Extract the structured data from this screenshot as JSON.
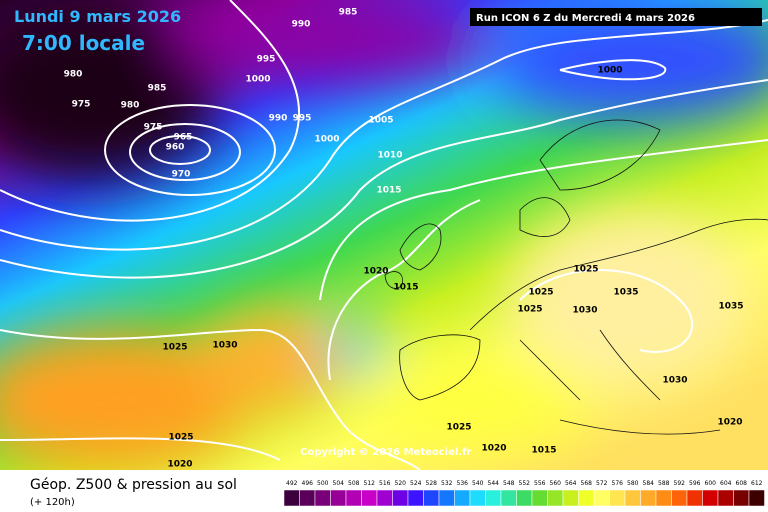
{
  "header": {
    "date": "Lundi 9 mars 2026",
    "time": "7:00 locale",
    "run": "Run ICON 6 Z du Mercredi 4 mars 2026"
  },
  "copyright": "Copyright © 2026 Meteociel.fr",
  "footer": {
    "title": "Géop. Z500 & pression au sol",
    "subtitle": "(+ 120h)"
  },
  "isobar_labels": [
    "985",
    "990",
    "995",
    "1000",
    "980",
    "975",
    "980",
    "985",
    "975",
    "965",
    "960",
    "970",
    "990",
    "995",
    "1000",
    "1005",
    "1010",
    "1015",
    "1000",
    "1020",
    "1015",
    "1025",
    "1025",
    "1035",
    "1025",
    "1030",
    "1035",
    "1025",
    "1030",
    "1030",
    "1025",
    "1025",
    "1020",
    "1015",
    "1020",
    "1020"
  ],
  "legend": {
    "values": [
      492,
      496,
      500,
      504,
      508,
      512,
      516,
      520,
      524,
      528,
      532,
      536,
      540,
      544,
      548,
      552,
      556,
      560,
      564,
      568,
      572,
      576,
      580,
      584,
      588,
      592,
      596,
      600,
      604,
      608,
      612
    ],
    "colors": [
      "#3c003c",
      "#5a005a",
      "#780078",
      "#960096",
      "#b400b4",
      "#c800c8",
      "#a000d2",
      "#6e00e6",
      "#3c14ff",
      "#1e46ff",
      "#1478ff",
      "#14aaff",
      "#1edcff",
      "#28f0dc",
      "#32e6a0",
      "#3cdc64",
      "#64dc32",
      "#96e628",
      "#c8f01e",
      "#f0ff28",
      "#ffff64",
      "#ffe650",
      "#ffc83c",
      "#ffaa28",
      "#ff8c14",
      "#ff640a",
      "#f03200",
      "#d20000",
      "#aa0000",
      "#780000",
      "#3c0000"
    ]
  }
}
